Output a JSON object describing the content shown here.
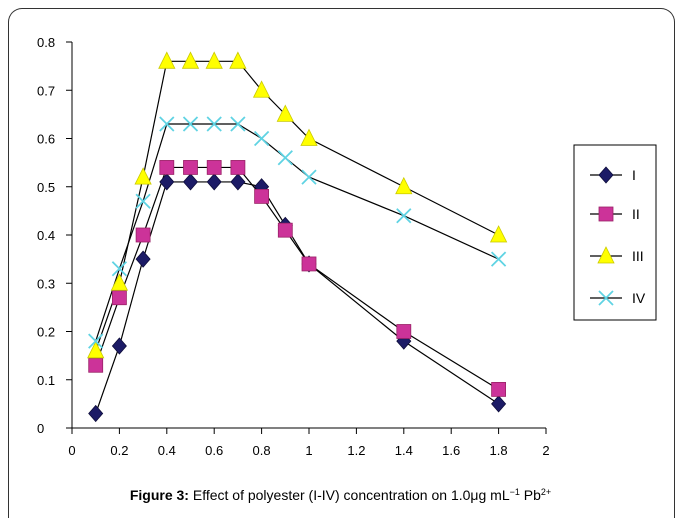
{
  "chart_data": {
    "type": "line",
    "x": [
      0.1,
      0.2,
      0.3,
      0.4,
      0.5,
      0.6,
      0.7,
      0.8,
      0.9,
      1.0,
      1.4,
      1.8
    ],
    "series": [
      {
        "name": "I",
        "marker": "diamond",
        "color": "#1c1b66",
        "values": [
          0.03,
          0.17,
          0.35,
          0.51,
          0.51,
          0.51,
          0.51,
          0.5,
          0.42,
          0.34,
          0.18,
          0.05
        ]
      },
      {
        "name": "II",
        "marker": "square",
        "color": "#cc3399",
        "values": [
          0.13,
          0.27,
          0.4,
          0.54,
          0.54,
          0.54,
          0.54,
          0.48,
          0.41,
          0.34,
          0.2,
          0.08
        ]
      },
      {
        "name": "III",
        "marker": "triangle",
        "color": "#ffff00",
        "values": [
          0.16,
          0.3,
          0.52,
          0.76,
          0.76,
          0.76,
          0.76,
          0.7,
          0.65,
          0.6,
          0.5,
          0.4
        ]
      },
      {
        "name": "IV",
        "marker": "x",
        "color": "#5fd3e3",
        "values": [
          0.18,
          0.33,
          0.47,
          0.63,
          0.63,
          0.63,
          0.63,
          0.6,
          0.56,
          0.52,
          0.44,
          0.35
        ]
      }
    ],
    "xlim": [
      0,
      2
    ],
    "ylim": [
      0,
      0.8
    ],
    "x_tick_labels": [
      "0",
      "0.2",
      "0.4",
      "0.6",
      "0.8",
      "1",
      "1.2",
      "1.4",
      "1.6",
      "1.8",
      "2"
    ],
    "y_tick_labels": [
      "0",
      "0.1",
      "0.2",
      "0.3",
      "0.4",
      "0.5",
      "0.6",
      "0.7",
      "0.8"
    ],
    "legend": "right",
    "grid": false,
    "line_color": "#000000"
  },
  "caption": {
    "label": "Figure 3:",
    "text": " Effect of polyester (I-IV) concentration on 1.0μg mL",
    "sup1": "−1",
    "text2": " Pb",
    "sup2": "2+"
  }
}
